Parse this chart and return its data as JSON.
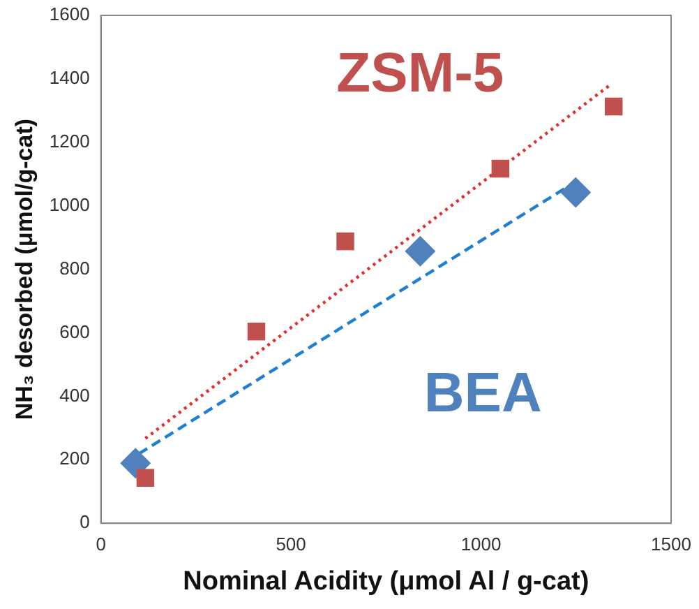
{
  "chart_data": {
    "type": "scatter",
    "xlabel": "Nominal Acidity (μmol Al / g-cat)",
    "ylabel": "NH₃ desorbed (μmol/g-cat)",
    "xlim": [
      0,
      1500
    ],
    "xticks": [
      0,
      500,
      1000,
      1500
    ],
    "ylim": [
      0,
      1600
    ],
    "yticks": [
      0,
      200,
      400,
      600,
      800,
      1000,
      1200,
      1400,
      1600
    ],
    "grid": false,
    "legend": false,
    "series": [
      {
        "name": "ZSM-5",
        "marker": "square",
        "color": "#c0504d",
        "x": [
          117,
          409,
          643,
          1051,
          1349
        ],
        "values": [
          143,
          604,
          888,
          1117,
          1313
        ]
      },
      {
        "name": "BEA",
        "marker": "diamond",
        "color": "#4f81bd",
        "x": [
          91,
          840,
          1249
        ],
        "values": [
          189,
          857,
          1042
        ]
      },
      {
        "type": "line",
        "marker": "none",
        "line_style": "dotted",
        "color": "#e03030",
        "x": [
          117,
          1343
        ],
        "values": [
          267,
          1384
        ]
      },
      {
        "type": "line",
        "marker": "none",
        "line_style": "dashed",
        "color": "#1f7fd0",
        "x": [
          100,
          1249
        ],
        "values": [
          219,
          1076
        ]
      }
    ]
  }
}
